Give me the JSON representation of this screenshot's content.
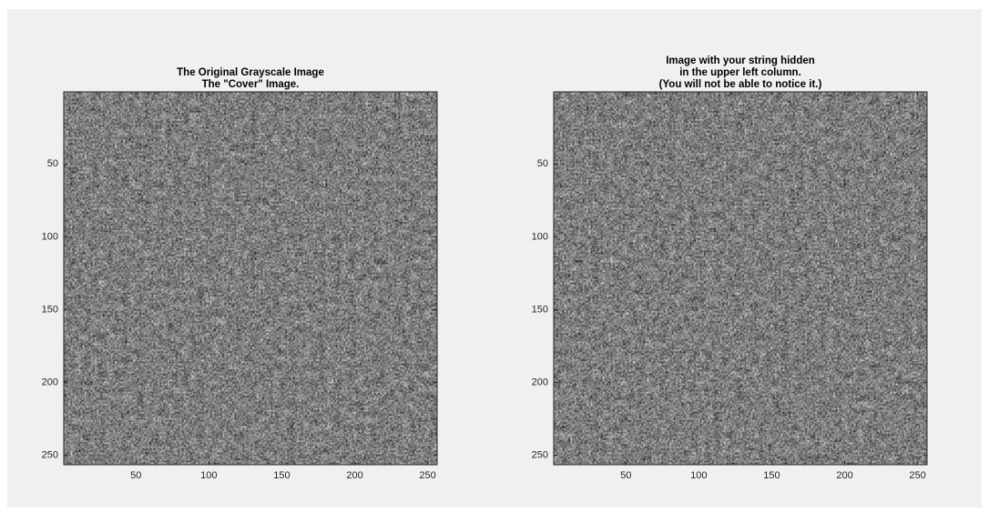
{
  "chart_data": [
    {
      "type": "image",
      "title": [
        "The Original Grayscale Image",
        "The \"Cover\" Image."
      ],
      "xlim": [
        0.5,
        256.5
      ],
      "ylim": [
        0.5,
        256.5
      ],
      "y_reversed": true,
      "xticks": [
        50,
        100,
        150,
        200,
        250
      ],
      "yticks": [
        50,
        100,
        150,
        200,
        250
      ],
      "colormap": "gray"
    },
    {
      "type": "image",
      "title": [
        "Image with your string hidden",
        "in the upper left column.",
        "(You will not be able to notice it.)"
      ],
      "xlim": [
        0.5,
        256.5
      ],
      "ylim": [
        0.5,
        256.5
      ],
      "y_reversed": true,
      "xticks": [
        50,
        100,
        150,
        200,
        250
      ],
      "yticks": [
        50,
        100,
        150,
        200,
        250
      ],
      "colormap": "gray"
    }
  ]
}
